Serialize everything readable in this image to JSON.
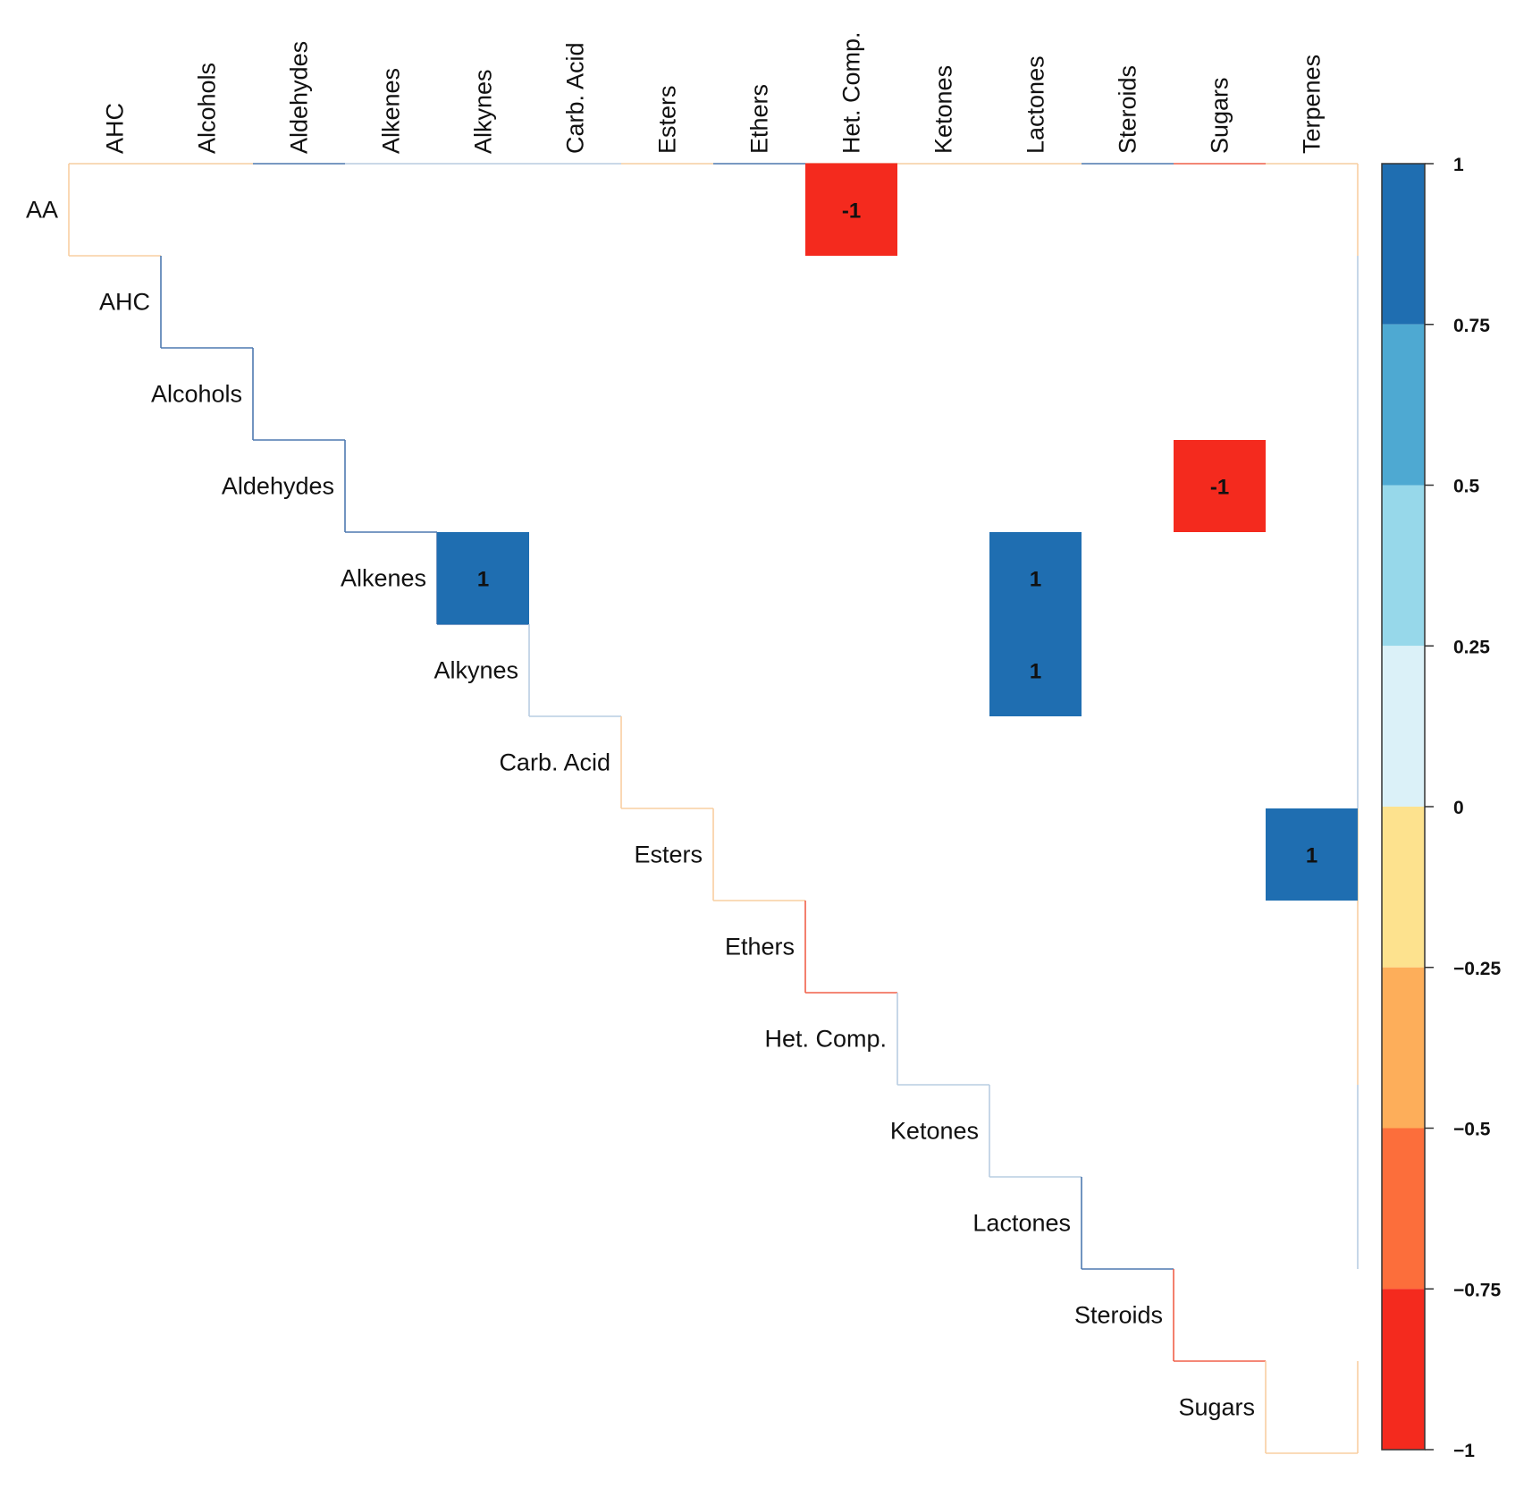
{
  "chart_data": {
    "type": "heatmap",
    "subtype": "upper-triangle correlation matrix",
    "row_labels": [
      "AA",
      "AHC",
      "Alcohols",
      "Aldehydes",
      "Alkenes",
      "Alkynes",
      "Carb. Acid",
      "Esters",
      "Ethers",
      "Het. Comp.",
      "Ketones",
      "Lactones",
      "Steroids",
      "Sugars"
    ],
    "col_labels": [
      "AHC",
      "Alcohols",
      "Aldehydes",
      "Alkenes",
      "Alkynes",
      "Carb. Acid",
      "Esters",
      "Ethers",
      "Het. Comp.",
      "Ketones",
      "Lactones",
      "Steroids",
      "Sugars",
      "Terpenes"
    ],
    "cells": [
      {
        "row": "AA",
        "col": "Het. Comp.",
        "value": -1,
        "label": "-1"
      },
      {
        "row": "Aldehydes",
        "col": "Sugars",
        "value": -1,
        "label": "-1"
      },
      {
        "row": "Alkenes",
        "col": "Alkynes",
        "value": 1,
        "label": "1"
      },
      {
        "row": "Alkenes",
        "col": "Lactones",
        "value": 1,
        "label": "1"
      },
      {
        "row": "Alkynes",
        "col": "Lactones",
        "value": 1,
        "label": "1"
      },
      {
        "row": "Esters",
        "col": "Terpenes",
        "value": 1,
        "label": "1"
      }
    ],
    "colorbar": {
      "range": [
        -1,
        1
      ],
      "ticks": [
        1,
        0.75,
        0.5,
        0.25,
        0,
        -0.25,
        -0.5,
        -0.75,
        -1
      ],
      "tick_labels": [
        "1",
        "0.75",
        "0.5",
        "0.25",
        "0",
        "−0.25",
        "−0.5",
        "−0.75",
        "−1"
      ],
      "bands": [
        {
          "from": 0.75,
          "to": 1,
          "color": "#1f6eb1"
        },
        {
          "from": 0.5,
          "to": 0.75,
          "color": "#4ea9d2"
        },
        {
          "from": 0.25,
          "to": 0.5,
          "color": "#97d8ea"
        },
        {
          "from": 0,
          "to": 0.25,
          "color": "#dbf1f8"
        },
        {
          "from": -0.25,
          "to": 0,
          "color": "#fde28e"
        },
        {
          "from": -0.5,
          "to": -0.25,
          "color": "#fdae5a"
        },
        {
          "from": -0.75,
          "to": -0.5,
          "color": "#fc6e3b"
        },
        {
          "from": -1,
          "to": -0.75,
          "color": "#f42a1e"
        }
      ]
    },
    "edge_line_colors": {
      "positive": "#4e79b0",
      "negative": "#f0614a",
      "weak_negative": "#f8cfa2",
      "weak_positive": "#b9cde2"
    }
  }
}
